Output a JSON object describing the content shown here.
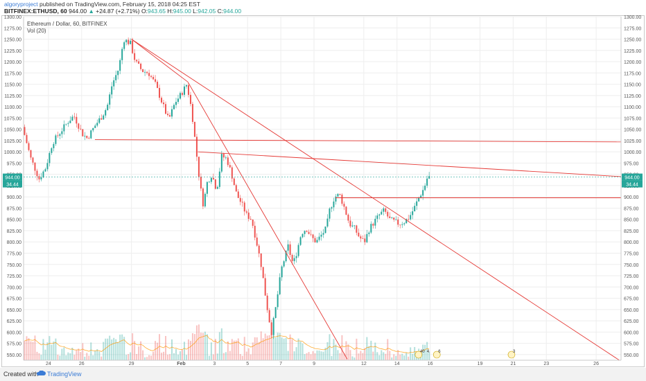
{
  "header": {
    "author": "algoryproject",
    "published_text": " published on TradingView.com, February 15, 2018 04:25 EST",
    "symbol": "BITFINEX:ETHUSD, 60",
    "last": "944.00",
    "change": "+24.87 (+2.71%)",
    "open_label": "O:",
    "open": "943.65",
    "high_label": "H:",
    "high": "945.00",
    "low_label": "L:",
    "low": "942.05",
    "close_label": "C:",
    "close": "944.00"
  },
  "legend": {
    "series_title": "Ethereum / Dollar, 60, BITFINEX",
    "volume_title": "Vol (20)"
  },
  "footer": {
    "created_with": "Created with",
    "brand": "TradingView"
  },
  "badges": {
    "current_price": "944.00",
    "volume_value": "34.44"
  },
  "events": [
    {
      "label": "40",
      "count": "4"
    },
    {
      "label": "6"
    },
    {
      "label": "3"
    }
  ],
  "colors": {
    "up": "#26a69a",
    "down": "#ef5350",
    "trendline": "#e53935",
    "price_line": "#26a69a",
    "volume_ma": "#ff9800"
  },
  "chart_data": {
    "type": "candlestick",
    "symbol": "ETHUSD",
    "interval": "60",
    "exchange": "BITFINEX",
    "ylim": [
      537.5,
      1300
    ],
    "y_ticks": [
      550,
      575,
      600,
      625,
      650,
      675,
      700,
      725,
      750,
      775,
      800,
      825,
      850,
      875,
      900,
      925,
      950,
      975,
      1000,
      1025,
      1050,
      1075,
      1100,
      1125,
      1150,
      1175,
      1200,
      1225,
      1250,
      1275,
      1300
    ],
    "x_ticks": [
      "24",
      "26",
      "29",
      "Feb",
      "3",
      "5",
      "7",
      "9",
      "12",
      "14",
      "16",
      "19",
      "21",
      "23",
      "26"
    ],
    "x_tick_days": [
      24,
      26,
      29,
      32,
      34,
      36,
      38,
      40,
      43,
      45,
      47,
      50,
      52,
      54,
      57
    ],
    "xlim_days": [
      22.5,
      58.5
    ],
    "price_path": [
      [
        22.5,
        1055
      ],
      [
        23.0,
        985
      ],
      [
        23.5,
        940
      ],
      [
        23.9,
        965
      ],
      [
        24.3,
        1020
      ],
      [
        24.8,
        1045
      ],
      [
        25.3,
        1070
      ],
      [
        25.6,
        1080
      ],
      [
        26.1,
        1040
      ],
      [
        26.4,
        1030
      ],
      [
        26.9,
        1060
      ],
      [
        27.3,
        1080
      ],
      [
        27.6,
        1100
      ],
      [
        27.9,
        1150
      ],
      [
        28.3,
        1185
      ],
      [
        28.6,
        1250
      ],
      [
        29.0,
        1240
      ],
      [
        29.3,
        1200
      ],
      [
        29.7,
        1180
      ],
      [
        30.1,
        1175
      ],
      [
        30.5,
        1150
      ],
      [
        30.9,
        1110
      ],
      [
        31.3,
        1070
      ],
      [
        31.7,
        1110
      ],
      [
        32.0,
        1125
      ],
      [
        32.4,
        1150
      ],
      [
        32.7,
        1090
      ],
      [
        33.0,
        990
      ],
      [
        33.2,
        925
      ],
      [
        33.4,
        880
      ],
      [
        33.6,
        930
      ],
      [
        33.9,
        950
      ],
      [
        34.2,
        915
      ],
      [
        34.5,
        990
      ],
      [
        34.8,
        985
      ],
      [
        35.1,
        950
      ],
      [
        35.4,
        905
      ],
      [
        35.7,
        885
      ],
      [
        36.0,
        860
      ],
      [
        36.3,
        850
      ],
      [
        36.6,
        800
      ],
      [
        36.9,
        745
      ],
      [
        37.1,
        690
      ],
      [
        37.3,
        640
      ],
      [
        37.5,
        600
      ],
      [
        37.7,
        640
      ],
      [
        37.9,
        690
      ],
      [
        38.1,
        740
      ],
      [
        38.3,
        765
      ],
      [
        38.5,
        790
      ],
      [
        38.8,
        750
      ],
      [
        39.0,
        775
      ],
      [
        39.3,
        820
      ],
      [
        39.6,
        830
      ],
      [
        39.9,
        810
      ],
      [
        40.2,
        800
      ],
      [
        40.5,
        815
      ],
      [
        40.8,
        830
      ],
      [
        41.0,
        870
      ],
      [
        41.3,
        900
      ],
      [
        41.6,
        905
      ],
      [
        41.9,
        875
      ],
      [
        42.2,
        840
      ],
      [
        42.5,
        830
      ],
      [
        42.8,
        810
      ],
      [
        43.1,
        800
      ],
      [
        43.4,
        830
      ],
      [
        43.7,
        845
      ],
      [
        44.0,
        860
      ],
      [
        44.3,
        870
      ],
      [
        44.6,
        850
      ],
      [
        44.9,
        845
      ],
      [
        45.2,
        840
      ],
      [
        45.5,
        845
      ],
      [
        45.8,
        855
      ],
      [
        46.1,
        875
      ],
      [
        46.4,
        900
      ],
      [
        46.7,
        920
      ],
      [
        46.9,
        944
      ]
    ],
    "trendlines": [
      {
        "from": [
          29.0,
          1250
        ],
        "to": [
          58.5,
          535
        ]
      },
      {
        "from": [
          29.0,
          1250
        ],
        "to": [
          58.5,
          535
        ],
        "note": "via 32.4,1155"
      },
      {
        "from": [
          32.4,
          1155
        ],
        "to": [
          42.0,
          540
        ]
      },
      {
        "from": [
          26.8,
          1027
        ],
        "to": [
          58.5,
          1022
        ]
      },
      {
        "from": [
          33.0,
          1000
        ],
        "to": [
          58.5,
          945
        ]
      },
      {
        "from": [
          41.3,
          898
        ],
        "to": [
          58.5,
          898
        ]
      }
    ],
    "current_price": 944.0,
    "volume_current": 34.44
  }
}
